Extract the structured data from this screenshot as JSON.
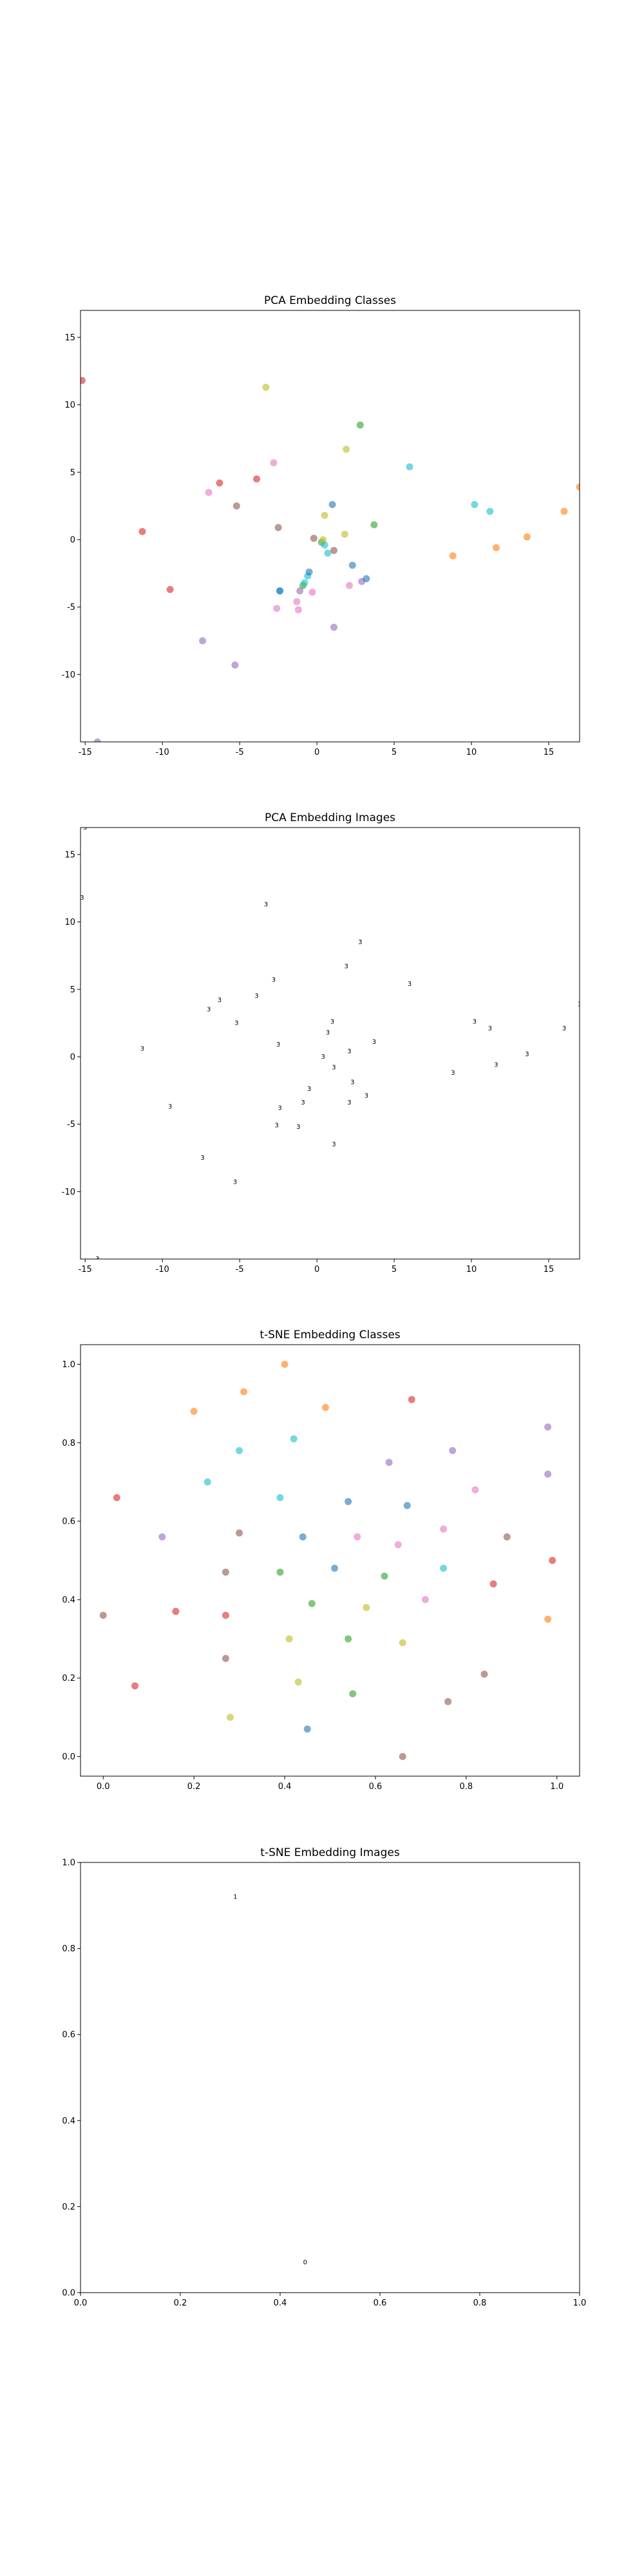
{
  "chart_data": [
    {
      "type": "scatter",
      "title": "PCA Embedding Classes",
      "xlabel": "",
      "ylabel": "",
      "xlim": [
        -15.3,
        17.0
      ],
      "ylim": [
        -15.0,
        17.0
      ],
      "xticks": [
        -15,
        -10,
        -5,
        0,
        5,
        10,
        15
      ],
      "yticks": [
        -10,
        -5,
        0,
        5,
        10,
        15
      ],
      "grid": false,
      "points": [
        {
          "x": -15.2,
          "y": 11.8,
          "color": "#d62728"
        },
        {
          "x": -11.3,
          "y": 0.6,
          "color": "#d62728"
        },
        {
          "x": -9.5,
          "y": -3.7,
          "color": "#d62728"
        },
        {
          "x": -7.4,
          "y": -7.5,
          "color": "#9467bd"
        },
        {
          "x": -7.0,
          "y": 3.5,
          "color": "#e377c2"
        },
        {
          "x": -6.3,
          "y": 4.2,
          "color": "#d62728"
        },
        {
          "x": -5.3,
          "y": -9.3,
          "color": "#9467bd"
        },
        {
          "x": -5.2,
          "y": 2.5,
          "color": "#8c564b"
        },
        {
          "x": -3.9,
          "y": 4.5,
          "color": "#d62728"
        },
        {
          "x": -3.3,
          "y": 11.3,
          "color": "#bcbd22"
        },
        {
          "x": -2.8,
          "y": 5.7,
          "color": "#e377c2"
        },
        {
          "x": -2.5,
          "y": 0.9,
          "color": "#8c564b"
        },
        {
          "x": -2.4,
          "y": -3.8,
          "color": "#17becf"
        },
        {
          "x": -2.4,
          "y": -3.8,
          "color": "#1f77b4"
        },
        {
          "x": -2.6,
          "y": -5.1,
          "color": "#e377c2"
        },
        {
          "x": -1.3,
          "y": -4.6,
          "color": "#e377c2"
        },
        {
          "x": -1.2,
          "y": -5.2,
          "color": "#e377c2"
        },
        {
          "x": -1.1,
          "y": -3.8,
          "color": "#9467bd"
        },
        {
          "x": -0.9,
          "y": -3.4,
          "color": "#2ca02c"
        },
        {
          "x": -0.8,
          "y": -3.2,
          "color": "#17becf"
        },
        {
          "x": -0.6,
          "y": -2.7,
          "color": "#17becf"
        },
        {
          "x": -0.5,
          "y": -2.4,
          "color": "#1f77b4"
        },
        {
          "x": -0.3,
          "y": -3.9,
          "color": "#e377c2"
        },
        {
          "x": -0.2,
          "y": 0.1,
          "color": "#8c564b"
        },
        {
          "x": 0.3,
          "y": -0.2,
          "color": "#2ca02c"
        },
        {
          "x": 0.4,
          "y": 0.0,
          "color": "#bcbd22"
        },
        {
          "x": 0.5,
          "y": -0.4,
          "color": "#17becf"
        },
        {
          "x": 0.5,
          "y": 1.8,
          "color": "#bcbd22"
        },
        {
          "x": 0.7,
          "y": -1.0,
          "color": "#17becf"
        },
        {
          "x": 1.0,
          "y": 2.6,
          "color": "#1f77b4"
        },
        {
          "x": 1.1,
          "y": -0.8,
          "color": "#8c564b"
        },
        {
          "x": 1.1,
          "y": -6.5,
          "color": "#9467bd"
        },
        {
          "x": 1.8,
          "y": 0.4,
          "color": "#bcbd22"
        },
        {
          "x": 1.9,
          "y": 6.7,
          "color": "#bcbd22"
        },
        {
          "x": 2.1,
          "y": -3.4,
          "color": "#e377c2"
        },
        {
          "x": 2.3,
          "y": -1.9,
          "color": "#1f77b4"
        },
        {
          "x": 2.8,
          "y": 8.5,
          "color": "#2ca02c"
        },
        {
          "x": 2.9,
          "y": -3.1,
          "color": "#9467bd"
        },
        {
          "x": 3.2,
          "y": -2.9,
          "color": "#1f77b4"
        },
        {
          "x": 3.7,
          "y": 1.1,
          "color": "#2ca02c"
        },
        {
          "x": 6.0,
          "y": 5.4,
          "color": "#17becf"
        },
        {
          "x": 8.8,
          "y": -1.2,
          "color": "#ff7f0e"
        },
        {
          "x": 10.2,
          "y": 2.6,
          "color": "#17becf"
        },
        {
          "x": 11.2,
          "y": 2.1,
          "color": "#17becf"
        },
        {
          "x": 11.6,
          "y": -0.6,
          "color": "#ff7f0e"
        },
        {
          "x": 13.6,
          "y": 0.2,
          "color": "#ff7f0e"
        },
        {
          "x": 16.0,
          "y": 2.1,
          "color": "#ff7f0e"
        },
        {
          "x": 17.0,
          "y": 3.9,
          "color": "#ff7f0e"
        },
        {
          "x": -14.2,
          "y": -15.0,
          "color": "#9467bd"
        }
      ]
    },
    {
      "type": "scatter",
      "title": "PCA Embedding Images",
      "xlabel": "",
      "ylabel": "",
      "xlim": [
        -15.3,
        17.0
      ],
      "ylim": [
        -15.0,
        17.0
      ],
      "xticks": [
        -15,
        -10,
        -5,
        0,
        5,
        10,
        15
      ],
      "yticks": [
        -10,
        -5,
        0,
        5,
        10,
        15
      ],
      "grid": false,
      "glyph": "3",
      "points": [
        {
          "x": -15.0,
          "y": 17.0
        },
        {
          "x": -15.2,
          "y": 11.8
        },
        {
          "x": -14.2,
          "y": -15.0
        },
        {
          "x": -11.3,
          "y": 0.6
        },
        {
          "x": -9.5,
          "y": -3.7
        },
        {
          "x": -7.4,
          "y": -7.5
        },
        {
          "x": -7.0,
          "y": 3.5
        },
        {
          "x": -6.3,
          "y": 4.2
        },
        {
          "x": -5.3,
          "y": -9.3
        },
        {
          "x": -5.2,
          "y": 2.5
        },
        {
          "x": -3.9,
          "y": 4.5
        },
        {
          "x": -3.3,
          "y": 11.3
        },
        {
          "x": -2.8,
          "y": 5.7
        },
        {
          "x": -2.5,
          "y": 0.9
        },
        {
          "x": -2.4,
          "y": -3.8
        },
        {
          "x": -2.6,
          "y": -5.1
        },
        {
          "x": -1.2,
          "y": -5.2
        },
        {
          "x": -0.9,
          "y": -3.4
        },
        {
          "x": -0.5,
          "y": -2.4
        },
        {
          "x": 0.4,
          "y": 0.0
        },
        {
          "x": 0.7,
          "y": 1.8
        },
        {
          "x": 1.0,
          "y": 2.6
        },
        {
          "x": 1.1,
          "y": -0.8
        },
        {
          "x": 1.1,
          "y": -6.5
        },
        {
          "x": 1.9,
          "y": 6.7
        },
        {
          "x": 2.1,
          "y": 0.4
        },
        {
          "x": 2.1,
          "y": -3.4
        },
        {
          "x": 2.3,
          "y": -1.9
        },
        {
          "x": 2.8,
          "y": 8.5
        },
        {
          "x": 3.2,
          "y": -2.9
        },
        {
          "x": 3.7,
          "y": 1.1
        },
        {
          "x": 6.0,
          "y": 5.4
        },
        {
          "x": 8.8,
          "y": -1.2
        },
        {
          "x": 10.2,
          "y": 2.6
        },
        {
          "x": 11.2,
          "y": 2.1
        },
        {
          "x": 11.6,
          "y": -0.6
        },
        {
          "x": 13.6,
          "y": 0.2
        },
        {
          "x": 16.0,
          "y": 2.1
        },
        {
          "x": 17.0,
          "y": 3.9
        }
      ]
    },
    {
      "type": "scatter",
      "title": "t-SNE Embedding Classes",
      "xlabel": "",
      "ylabel": "",
      "xlim": [
        -0.05,
        1.05
      ],
      "ylim": [
        -0.05,
        1.05
      ],
      "xticks": [
        0.0,
        0.2,
        0.4,
        0.6,
        0.8,
        1.0
      ],
      "yticks": [
        0.0,
        0.2,
        0.4,
        0.6,
        0.8,
        1.0
      ],
      "grid": false,
      "points": [
        {
          "x": 0.0,
          "y": 0.36,
          "color": "#8c564b"
        },
        {
          "x": 0.03,
          "y": 0.66,
          "color": "#d62728"
        },
        {
          "x": 0.07,
          "y": 0.18,
          "color": "#d62728"
        },
        {
          "x": 0.13,
          "y": 0.56,
          "color": "#9467bd"
        },
        {
          "x": 0.16,
          "y": 0.37,
          "color": "#d62728"
        },
        {
          "x": 0.2,
          "y": 0.88,
          "color": "#ff7f0e"
        },
        {
          "x": 0.23,
          "y": 0.7,
          "color": "#17becf"
        },
        {
          "x": 0.27,
          "y": 0.47,
          "color": "#8c564b"
        },
        {
          "x": 0.27,
          "y": 0.36,
          "color": "#d62728"
        },
        {
          "x": 0.27,
          "y": 0.25,
          "color": "#8c564b"
        },
        {
          "x": 0.28,
          "y": 0.1,
          "color": "#bcbd22"
        },
        {
          "x": 0.3,
          "y": 0.78,
          "color": "#17becf"
        },
        {
          "x": 0.31,
          "y": 0.93,
          "color": "#ff7f0e"
        },
        {
          "x": 0.3,
          "y": 0.57,
          "color": "#8c564b"
        },
        {
          "x": 0.39,
          "y": 0.47,
          "color": "#2ca02c"
        },
        {
          "x": 0.4,
          "y": 1.0,
          "color": "#ff7f0e"
        },
        {
          "x": 0.39,
          "y": 0.66,
          "color": "#17becf"
        },
        {
          "x": 0.41,
          "y": 0.3,
          "color": "#bcbd22"
        },
        {
          "x": 0.42,
          "y": 0.81,
          "color": "#17becf"
        },
        {
          "x": 0.43,
          "y": 0.19,
          "color": "#bcbd22"
        },
        {
          "x": 0.44,
          "y": 0.56,
          "color": "#1f77b4"
        },
        {
          "x": 0.45,
          "y": 0.07,
          "color": "#1f77b4"
        },
        {
          "x": 0.46,
          "y": 0.39,
          "color": "#2ca02c"
        },
        {
          "x": 0.49,
          "y": 0.89,
          "color": "#ff7f0e"
        },
        {
          "x": 0.51,
          "y": 0.48,
          "color": "#1f77b4"
        },
        {
          "x": 0.54,
          "y": 0.65,
          "color": "#1f77b4"
        },
        {
          "x": 0.54,
          "y": 0.3,
          "color": "#2ca02c"
        },
        {
          "x": 0.55,
          "y": 0.16,
          "color": "#2ca02c"
        },
        {
          "x": 0.56,
          "y": 0.56,
          "color": "#e377c2"
        },
        {
          "x": 0.58,
          "y": 0.38,
          "color": "#bcbd22"
        },
        {
          "x": 0.62,
          "y": 0.46,
          "color": "#2ca02c"
        },
        {
          "x": 0.63,
          "y": 0.75,
          "color": "#9467bd"
        },
        {
          "x": 0.65,
          "y": 0.54,
          "color": "#e377c2"
        },
        {
          "x": 0.66,
          "y": 0.29,
          "color": "#bcbd22"
        },
        {
          "x": 0.66,
          "y": 0.0,
          "color": "#8c564b"
        },
        {
          "x": 0.67,
          "y": 0.64,
          "color": "#1f77b4"
        },
        {
          "x": 0.68,
          "y": 0.91,
          "color": "#d62728"
        },
        {
          "x": 0.71,
          "y": 0.4,
          "color": "#e377c2"
        },
        {
          "x": 0.75,
          "y": 0.48,
          "color": "#17becf"
        },
        {
          "x": 0.75,
          "y": 0.58,
          "color": "#e377c2"
        },
        {
          "x": 0.76,
          "y": 0.14,
          "color": "#8c564b"
        },
        {
          "x": 0.77,
          "y": 0.78,
          "color": "#9467bd"
        },
        {
          "x": 0.82,
          "y": 0.68,
          "color": "#e377c2"
        },
        {
          "x": 0.84,
          "y": 0.21,
          "color": "#8c564b"
        },
        {
          "x": 0.86,
          "y": 0.44,
          "color": "#d62728"
        },
        {
          "x": 0.89,
          "y": 0.56,
          "color": "#8c564b"
        },
        {
          "x": 0.98,
          "y": 0.84,
          "color": "#9467bd"
        },
        {
          "x": 0.98,
          "y": 0.72,
          "color": "#9467bd"
        },
        {
          "x": 0.98,
          "y": 0.35,
          "color": "#ff7f0e"
        },
        {
          "x": 0.99,
          "y": 0.5,
          "color": "#d62728"
        }
      ]
    },
    {
      "type": "scatter",
      "title": "t-SNE Embedding Images",
      "xlabel": "",
      "ylabel": "",
      "xlim": [
        0.0,
        1.0
      ],
      "ylim": [
        0.0,
        1.0
      ],
      "xticks": [
        0.0,
        0.2,
        0.4,
        0.6,
        0.8,
        1.0
      ],
      "yticks": [
        0.0,
        0.2,
        0.4,
        0.6,
        0.8,
        1.0
      ],
      "grid": false,
      "glyph": "1",
      "points": [
        {
          "x": 0.31,
          "y": 0.92,
          "glyph": "1"
        },
        {
          "x": 0.45,
          "y": 0.07,
          "glyph": "0"
        }
      ]
    }
  ]
}
